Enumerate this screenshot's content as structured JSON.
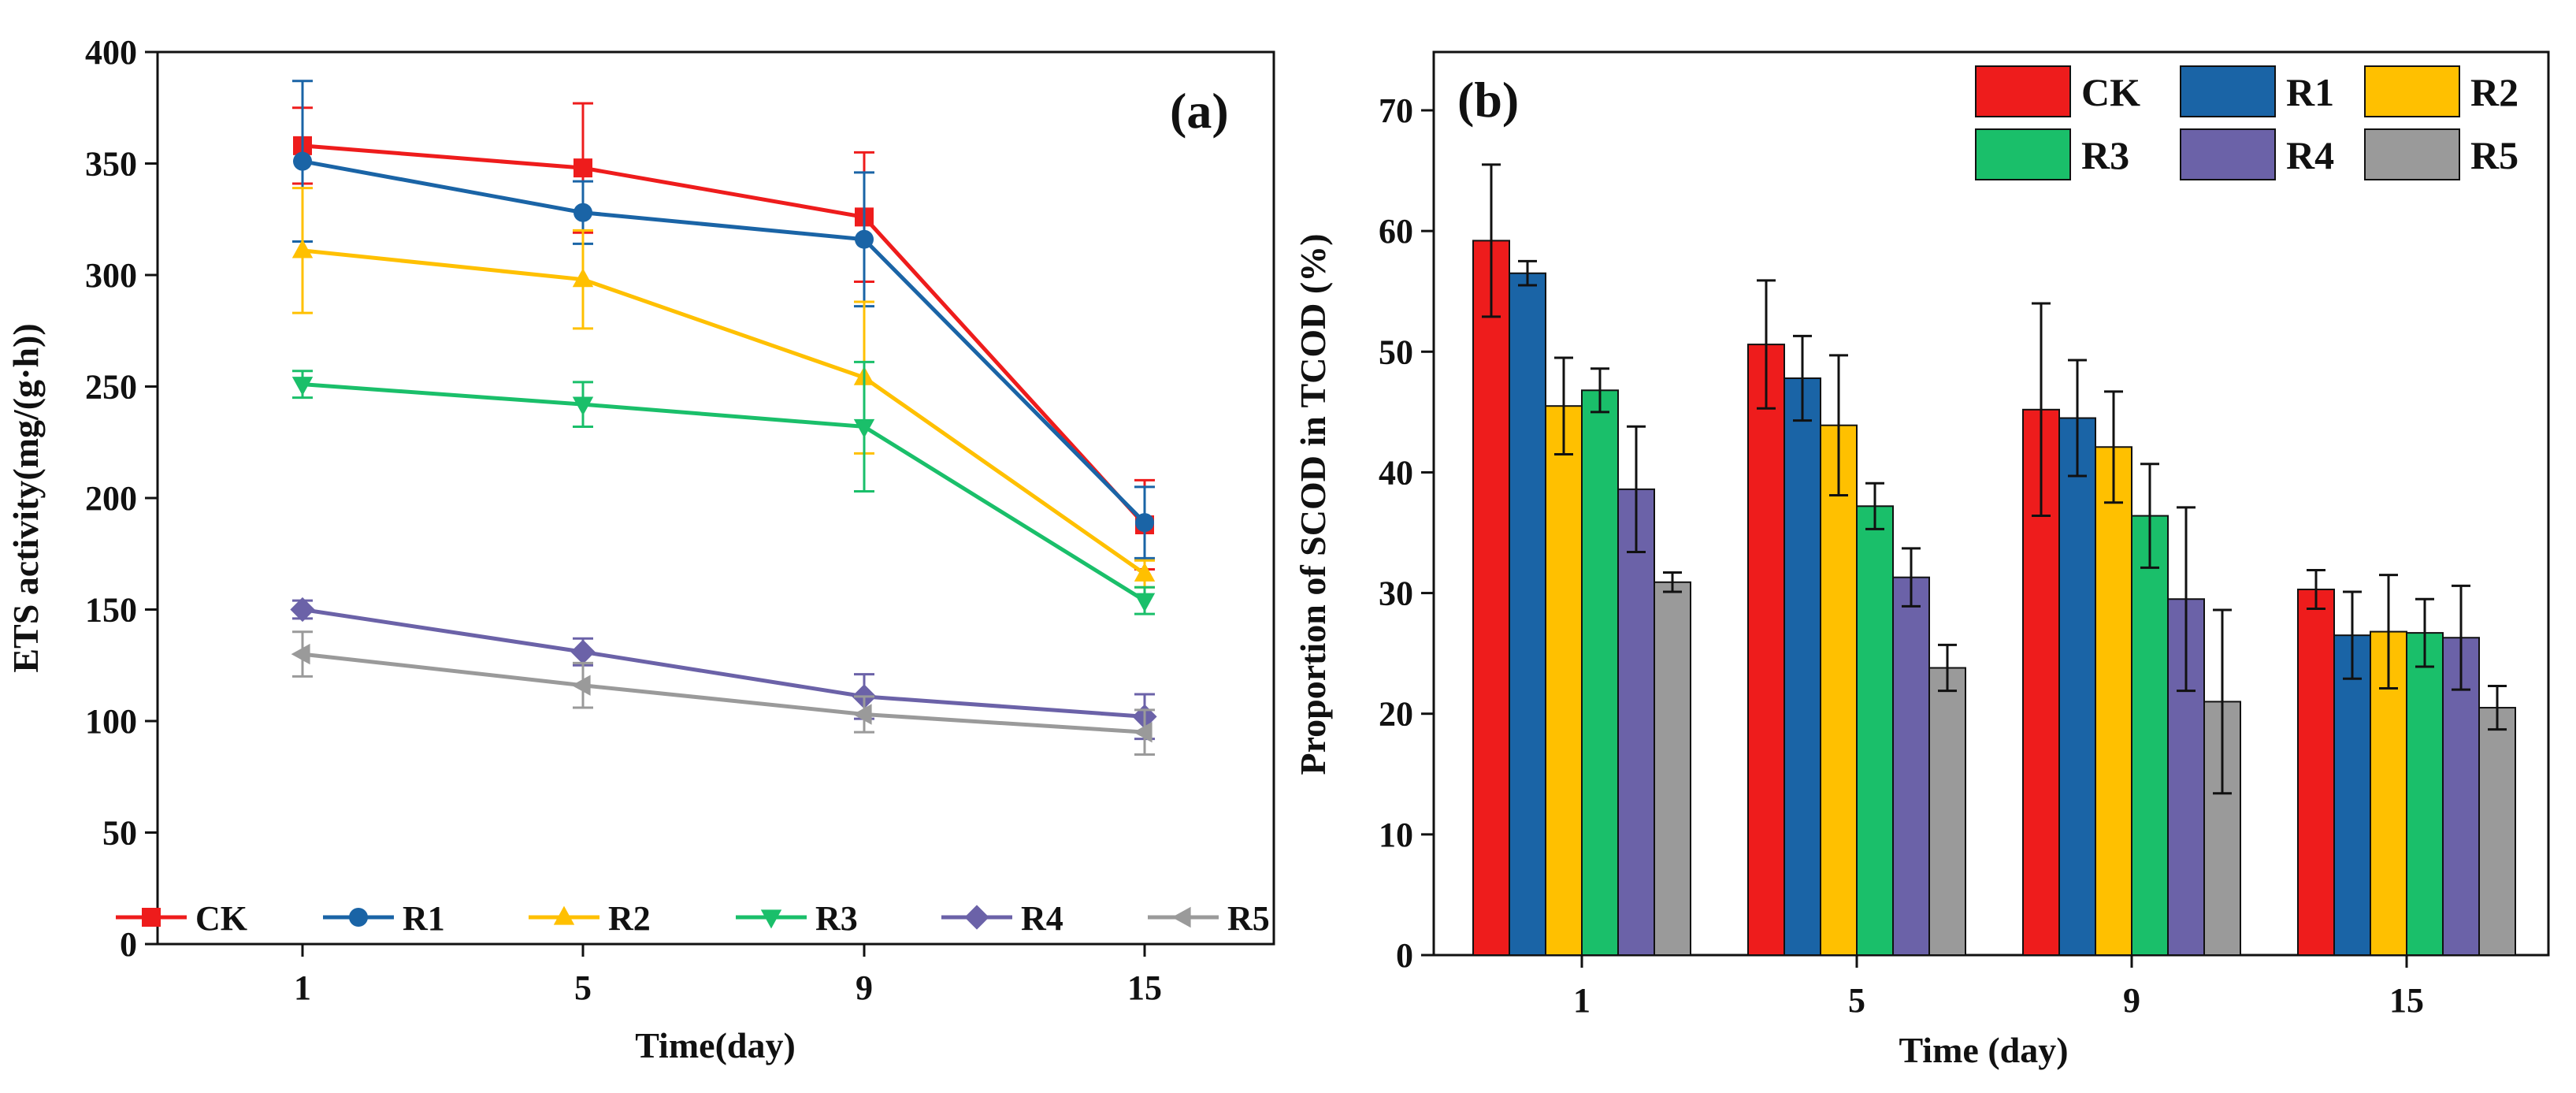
{
  "colors": {
    "CK": "#ee1c1c",
    "R1": "#1a64a6",
    "R2": "#ffc000",
    "R3": "#1abf6a",
    "R4": "#6b62a8",
    "R5": "#9a9a9a"
  },
  "chart_data": [
    {
      "type": "line",
      "panel_label": "(a)",
      "xlabel": "Time(day)",
      "ylabel": "ETS activity(mg/(g·h))",
      "categories": [
        "1",
        "5",
        "9",
        "15"
      ],
      "ylim": [
        0,
        400
      ],
      "yticks": [
        "0",
        "50",
        "100",
        "150",
        "200",
        "250",
        "300",
        "350",
        "400"
      ],
      "legend_position": "bottom",
      "series": [
        {
          "name": "CK",
          "marker": "square",
          "values": [
            358,
            348,
            326,
            188
          ],
          "errors": [
            17,
            29,
            29,
            20
          ]
        },
        {
          "name": "R1",
          "marker": "circle",
          "values": [
            351,
            328,
            316,
            189
          ],
          "errors": [
            36,
            14,
            30,
            16
          ]
        },
        {
          "name": "R2",
          "marker": "triangle-up",
          "values": [
            311,
            298,
            254,
            166
          ],
          "errors": [
            28,
            22,
            34,
            6
          ]
        },
        {
          "name": "R3",
          "marker": "triangle-down",
          "values": [
            251,
            242,
            232,
            154
          ],
          "errors": [
            6,
            10,
            29,
            6
          ]
        },
        {
          "name": "R4",
          "marker": "diamond",
          "values": [
            150,
            131,
            111,
            102
          ],
          "errors": [
            4,
            6,
            10,
            10
          ]
        },
        {
          "name": "R5",
          "marker": "triangle-left",
          "values": [
            130,
            116,
            103,
            95
          ],
          "errors": [
            10,
            10,
            8,
            10
          ]
        }
      ]
    },
    {
      "type": "bar",
      "panel_label": "(b)",
      "xlabel": "Time (day)",
      "ylabel": "Proportion of SCOD in TCOD (%)",
      "categories": [
        "1",
        "5",
        "9",
        "15"
      ],
      "ylim": [
        0,
        75
      ],
      "yticks": [
        "0",
        "10",
        "20",
        "30",
        "40",
        "50",
        "60",
        "70"
      ],
      "legend_position": "top-right",
      "series": [
        {
          "name": "CK",
          "values": [
            59.2,
            50.6,
            45.2,
            30.3
          ],
          "errors": [
            6.3,
            5.3,
            8.8,
            1.6
          ]
        },
        {
          "name": "R1",
          "values": [
            56.5,
            47.8,
            44.5,
            26.5
          ],
          "errors": [
            1.0,
            3.5,
            4.8,
            3.6
          ]
        },
        {
          "name": "R2",
          "values": [
            45.5,
            43.9,
            42.1,
            26.8
          ],
          "errors": [
            4.0,
            5.8,
            4.6,
            4.7
          ]
        },
        {
          "name": "R3",
          "values": [
            46.8,
            37.2,
            36.4,
            26.7
          ],
          "errors": [
            1.8,
            1.9,
            4.3,
            2.8
          ]
        },
        {
          "name": "R4",
          "values": [
            38.6,
            31.3,
            29.5,
            26.3
          ],
          "errors": [
            5.2,
            2.4,
            7.6,
            4.3
          ]
        },
        {
          "name": "R5",
          "values": [
            30.9,
            23.8,
            21.0,
            20.5
          ],
          "errors": [
            0.8,
            1.9,
            7.6,
            1.8
          ]
        }
      ]
    }
  ]
}
